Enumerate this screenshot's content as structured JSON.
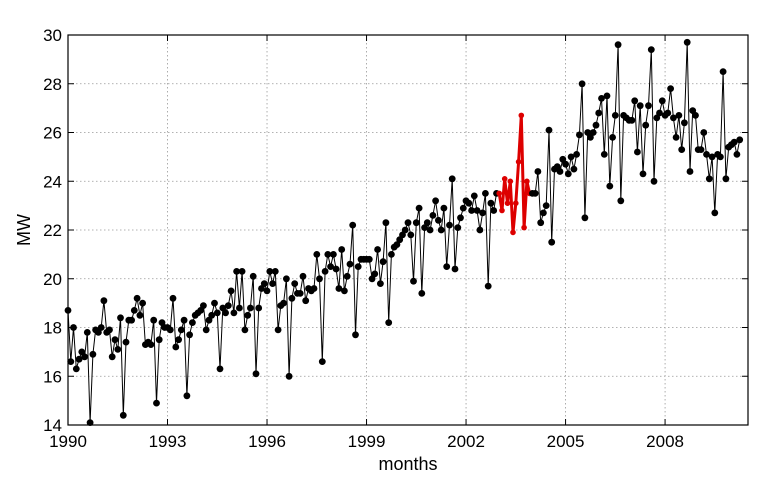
{
  "chart_data": {
    "type": "line",
    "xlabel": "months",
    "ylabel": "MW",
    "xlim": [
      1990.0,
      2010.5
    ],
    "ylim": [
      14,
      30
    ],
    "x_ticks": [
      1990,
      1993,
      1996,
      1999,
      2002,
      2005,
      2008
    ],
    "x_tick_labels": [
      "1990",
      "1993",
      "1996",
      "1999",
      "2002",
      "2005",
      "2008"
    ],
    "y_ticks": [
      14,
      16,
      18,
      20,
      22,
      24,
      26,
      28,
      30
    ],
    "y_tick_labels": [
      "14",
      "16",
      "18",
      "20",
      "22",
      "24",
      "26",
      "28",
      "30"
    ],
    "grid": true,
    "colors": {
      "main": "#000000",
      "highlight": "#dd0000",
      "grid": "#999999"
    },
    "series": [
      {
        "style": "main",
        "start_year": 1990.0,
        "step_years": 0.0833333,
        "values": [
          18.7,
          16.6,
          18.0,
          16.3,
          16.7,
          17.0,
          16.8,
          17.8,
          14.1,
          16.9,
          17.9,
          17.8,
          18.0,
          19.1,
          17.8,
          17.9,
          16.8,
          17.5,
          17.1,
          18.4,
          14.4,
          17.4,
          18.3,
          18.3,
          18.7,
          19.2,
          18.5,
          19.0,
          17.3,
          17.4,
          17.3,
          18.3,
          14.9,
          17.5,
          18.2,
          18.0,
          18.0,
          17.9,
          19.2,
          17.2,
          17.5,
          17.9,
          18.3,
          15.2,
          17.7,
          18.2,
          18.5,
          18.6,
          18.7,
          18.9,
          17.9,
          18.3,
          18.5,
          19.0,
          18.6,
          16.3,
          18.8,
          18.6,
          18.9,
          19.5,
          18.6,
          20.3,
          18.8,
          20.3,
          17.9,
          18.5,
          18.8,
          20.1,
          16.1,
          18.8,
          19.6,
          19.8,
          19.5,
          20.3,
          19.8,
          20.3,
          17.9,
          18.9,
          19.0,
          20.0,
          16.0,
          19.2,
          19.8,
          19.4,
          19.4,
          20.1,
          19.1,
          19.6,
          19.5,
          19.6,
          21.0,
          20.0,
          16.6,
          20.3,
          21.0,
          20.5,
          21.0,
          20.4,
          19.6,
          21.2,
          19.5,
          20.1,
          20.6,
          22.2,
          17.7,
          20.5,
          20.8,
          20.8,
          20.8,
          20.8,
          20.0,
          20.2,
          21.2,
          19.8,
          20.7,
          22.3,
          18.2,
          21.0,
          21.3,
          21.4,
          21.6,
          21.8,
          22.0,
          22.3,
          21.8,
          19.9,
          22.3,
          22.9,
          19.4,
          22.1,
          22.3,
          22.0,
          22.6,
          23.2,
          22.4,
          22.0,
          22.9,
          20.5,
          22.2,
          24.1,
          20.4,
          22.1,
          22.5,
          22.9,
          23.2,
          23.1,
          22.8,
          23.4,
          22.8,
          22.0,
          22.7,
          23.5,
          19.7,
          23.1,
          22.8,
          23.5
        ]
      },
      {
        "style": "highlight",
        "start_year": 2003.0,
        "step_years": 0.0833333,
        "values": [
          23.5,
          22.8,
          24.1,
          23.1,
          24.0,
          21.9,
          23.1,
          24.8,
          26.7,
          22.1,
          24.0,
          23.5
        ]
      },
      {
        "style": "main",
        "start_year": 2004.0,
        "step_years": 0.0833333,
        "values": [
          23.5,
          23.5,
          24.4,
          22.3,
          22.7,
          23.0,
          26.1,
          21.5,
          24.5,
          24.6,
          24.4,
          24.9,
          24.7,
          24.3,
          25.0,
          24.5,
          25.1,
          25.9,
          28.0,
          22.5,
          26.0,
          25.8,
          26.0,
          26.3,
          26.8,
          27.4,
          25.1,
          27.5,
          23.8,
          25.8,
          26.7,
          29.6,
          23.2,
          26.7,
          26.6,
          26.5,
          26.5,
          27.3,
          25.2,
          27.1,
          24.3,
          26.3,
          27.1,
          29.4,
          24.0,
          26.6,
          26.8,
          27.3,
          26.7,
          26.8,
          27.8,
          26.6,
          25.8,
          26.7,
          25.3,
          26.4,
          29.7,
          24.4,
          26.9,
          26.7,
          25.3,
          25.3,
          26.0,
          25.1,
          24.1,
          25.0,
          22.7,
          25.1,
          25.0,
          28.5,
          24.1,
          25.4,
          25.5,
          25.6,
          25.1,
          25.7
        ]
      }
    ]
  }
}
